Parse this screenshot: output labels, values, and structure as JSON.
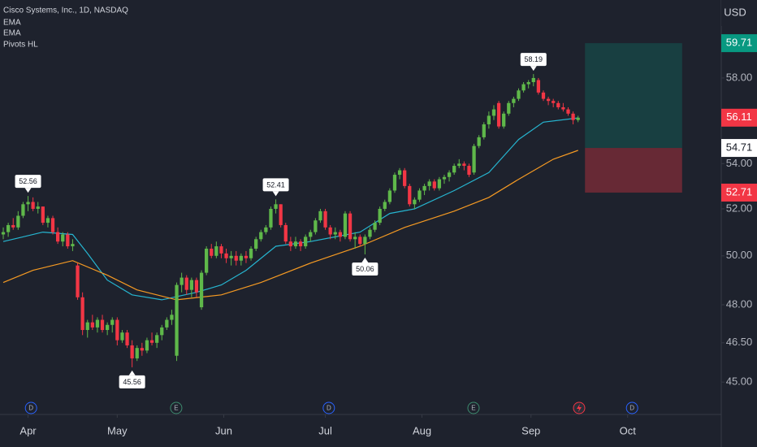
{
  "chart_data": {
    "type": "candlestick",
    "title": "Cisco Systems, Inc., 1D, NASDAQ",
    "currency": "USD",
    "log_scale": true,
    "up_color": "#5fb84a",
    "down_color": "#f23645",
    "ylim": [
      43.8,
      61.9
    ],
    "yticks": [
      {
        "value": 45,
        "label": "45.00"
      },
      {
        "value": 46.5,
        "label": "46.50"
      },
      {
        "value": 48,
        "label": "48.00"
      },
      {
        "value": 50,
        "label": "50.00"
      },
      {
        "value": 52,
        "label": "52.00"
      },
      {
        "value": 54,
        "label": "54.00"
      },
      {
        "value": 58,
        "label": "58.00"
      }
    ],
    "xlim": [
      -0.66,
      144.9
    ],
    "xticks": [
      {
        "value": 5,
        "label": "Apr"
      },
      {
        "value": 23,
        "label": "May"
      },
      {
        "value": 44.5,
        "label": "Jun"
      },
      {
        "value": 65,
        "label": "Jul"
      },
      {
        "value": 84.5,
        "label": "Aug"
      },
      {
        "value": 106.5,
        "label": "Sep"
      },
      {
        "value": 126,
        "label": "Oct"
      }
    ],
    "candles": [
      [
        50.9,
        51.2,
        50.7,
        51.0
      ],
      [
        51.0,
        51.4,
        50.8,
        51.3
      ],
      [
        51.3,
        51.6,
        51.1,
        51.2
      ],
      [
        51.2,
        51.9,
        51.1,
        51.7
      ],
      [
        51.7,
        52.3,
        51.6,
        52.2
      ],
      [
        52.2,
        52.56,
        51.9,
        52.3
      ],
      [
        52.3,
        52.5,
        51.9,
        52.0
      ],
      [
        52.0,
        52.3,
        51.8,
        52.1
      ],
      [
        52.1,
        52.1,
        51.3,
        51.4
      ],
      [
        51.4,
        51.7,
        51.2,
        51.6
      ],
      [
        51.6,
        51.7,
        50.9,
        51.0
      ],
      [
        51.0,
        51.2,
        50.5,
        50.6
      ],
      [
        50.6,
        51.0,
        50.4,
        50.9
      ],
      [
        50.9,
        51.0,
        50.3,
        50.4
      ],
      [
        50.4,
        50.7,
        50.2,
        50.5
      ],
      [
        49.6,
        49.7,
        48.2,
        48.3
      ],
      [
        48.3,
        48.5,
        46.8,
        47.0
      ],
      [
        47.0,
        47.4,
        46.7,
        47.3
      ],
      [
        47.3,
        47.6,
        47.0,
        47.1
      ],
      [
        47.1,
        47.5,
        46.9,
        47.4
      ],
      [
        47.4,
        47.6,
        46.9,
        47.0
      ],
      [
        47.0,
        47.3,
        46.8,
        47.2
      ],
      [
        47.2,
        47.5,
        46.9,
        47.4
      ],
      [
        47.4,
        47.5,
        46.4,
        46.6
      ],
      [
        46.6,
        47.0,
        46.5,
        46.9
      ],
      [
        46.9,
        47.0,
        46.3,
        46.4
      ],
      [
        46.4,
        46.6,
        45.56,
        45.9
      ],
      [
        45.9,
        46.4,
        45.8,
        46.3
      ],
      [
        46.3,
        46.5,
        46.0,
        46.2
      ],
      [
        46.2,
        46.7,
        46.1,
        46.6
      ],
      [
        46.6,
        46.9,
        46.4,
        46.5
      ],
      [
        46.5,
        46.9,
        46.3,
        46.8
      ],
      [
        46.8,
        47.2,
        46.6,
        47.1
      ],
      [
        47.1,
        47.5,
        47.0,
        47.4
      ],
      [
        47.4,
        47.8,
        47.2,
        47.6
      ],
      [
        46.0,
        48.9,
        45.8,
        48.8
      ],
      [
        48.8,
        49.3,
        48.5,
        49.1
      ],
      [
        49.1,
        49.2,
        48.4,
        48.6
      ],
      [
        48.6,
        49.1,
        48.3,
        49.0
      ],
      [
        49.0,
        49.1,
        48.3,
        48.5
      ],
      [
        47.9,
        49.4,
        47.8,
        49.3
      ],
      [
        49.3,
        50.4,
        49.2,
        50.3
      ],
      [
        50.3,
        50.5,
        49.9,
        50.0
      ],
      [
        50.0,
        50.6,
        49.9,
        50.4
      ],
      [
        50.4,
        50.5,
        49.9,
        50.1
      ],
      [
        50.1,
        50.3,
        49.7,
        49.9
      ],
      [
        49.9,
        50.2,
        49.6,
        50.0
      ],
      [
        50.0,
        50.2,
        49.6,
        49.8
      ],
      [
        49.8,
        50.1,
        49.6,
        50.0
      ],
      [
        50.0,
        50.2,
        49.7,
        49.9
      ],
      [
        49.9,
        50.4,
        49.8,
        50.3
      ],
      [
        50.3,
        50.8,
        50.2,
        50.7
      ],
      [
        50.7,
        51.1,
        50.6,
        51.0
      ],
      [
        51.0,
        51.3,
        50.9,
        51.2
      ],
      [
        51.2,
        52.1,
        51.1,
        52.0
      ],
      [
        52.0,
        52.41,
        51.8,
        52.2
      ],
      [
        52.2,
        52.2,
        51.2,
        51.3
      ],
      [
        51.3,
        51.4,
        50.5,
        50.6
      ],
      [
        50.6,
        50.8,
        50.2,
        50.4
      ],
      [
        50.4,
        50.8,
        50.3,
        50.6
      ],
      [
        50.6,
        50.7,
        50.2,
        50.4
      ],
      [
        50.4,
        50.9,
        50.3,
        50.8
      ],
      [
        50.8,
        51.1,
        50.6,
        51.0
      ],
      [
        51.0,
        51.6,
        50.9,
        51.5
      ],
      [
        51.5,
        52.0,
        51.4,
        51.9
      ],
      [
        51.9,
        52.0,
        51.1,
        51.2
      ],
      [
        51.2,
        51.3,
        50.7,
        50.9
      ],
      [
        50.9,
        51.2,
        50.7,
        51.0
      ],
      [
        51.0,
        51.1,
        50.6,
        50.8
      ],
      [
        50.8,
        51.9,
        50.7,
        51.8
      ],
      [
        51.8,
        51.9,
        50.6,
        50.7
      ],
      [
        50.7,
        51.0,
        50.3,
        50.8
      ],
      [
        50.8,
        50.9,
        50.4,
        50.5
      ],
      [
        50.5,
        50.9,
        50.06,
        50.8
      ],
      [
        50.8,
        51.2,
        50.7,
        51.1
      ],
      [
        51.1,
        51.5,
        51.0,
        51.4
      ],
      [
        51.4,
        52.1,
        51.3,
        52.0
      ],
      [
        52.0,
        52.4,
        51.9,
        52.3
      ],
      [
        52.3,
        52.9,
        52.2,
        52.8
      ],
      [
        52.8,
        53.6,
        52.7,
        53.5
      ],
      [
        53.5,
        53.8,
        53.3,
        53.7
      ],
      [
        53.7,
        53.8,
        52.9,
        53.0
      ],
      [
        53.0,
        53.1,
        52.1,
        52.2
      ],
      [
        52.2,
        52.5,
        52.0,
        52.4
      ],
      [
        52.4,
        52.9,
        52.3,
        52.8
      ],
      [
        52.8,
        53.1,
        52.6,
        53.0
      ],
      [
        53.0,
        53.3,
        52.8,
        53.2
      ],
      [
        53.2,
        53.3,
        52.8,
        52.9
      ],
      [
        52.9,
        53.4,
        52.8,
        53.3
      ],
      [
        53.3,
        53.5,
        53.1,
        53.4
      ],
      [
        53.4,
        53.7,
        53.2,
        53.6
      ],
      [
        53.6,
        54.0,
        53.5,
        53.9
      ],
      [
        53.9,
        54.2,
        53.8,
        54.0
      ],
      [
        54.0,
        54.1,
        53.7,
        53.9
      ],
      [
        53.9,
        54.0,
        53.4,
        53.5
      ],
      [
        53.6,
        54.9,
        53.5,
        54.8
      ],
      [
        54.8,
        55.3,
        54.7,
        55.2
      ],
      [
        55.2,
        55.9,
        55.1,
        55.8
      ],
      [
        55.8,
        56.4,
        55.6,
        56.2
      ],
      [
        56.2,
        56.7,
        56.0,
        56.5
      ],
      [
        56.8,
        56.9,
        55.6,
        55.7
      ],
      [
        55.7,
        56.4,
        55.6,
        56.3
      ],
      [
        56.3,
        56.9,
        56.2,
        56.8
      ],
      [
        56.8,
        57.1,
        56.6,
        57.0
      ],
      [
        57.0,
        57.5,
        56.9,
        57.4
      ],
      [
        57.4,
        57.8,
        57.3,
        57.7
      ],
      [
        57.7,
        57.9,
        57.5,
        57.8
      ],
      [
        57.8,
        58.19,
        57.6,
        58.0
      ],
      [
        57.9,
        58.0,
        57.2,
        57.3
      ],
      [
        57.3,
        57.4,
        56.9,
        57.0
      ],
      [
        57.0,
        57.1,
        56.7,
        56.9
      ],
      [
        56.9,
        57.0,
        56.6,
        56.8
      ],
      [
        56.8,
        56.9,
        56.5,
        56.6
      ],
      [
        56.6,
        56.8,
        56.4,
        56.5
      ],
      [
        56.5,
        56.6,
        56.2,
        56.3
      ],
      [
        56.3,
        56.4,
        55.8,
        56.0
      ],
      [
        56.0,
        56.2,
        55.9,
        56.11
      ]
    ],
    "series": [
      {
        "name": "EMA",
        "color": "#26b5d0",
        "x": [
          0,
          4,
          8,
          14,
          17,
          21,
          26,
          32,
          39,
          44,
          49,
          55,
          62,
          67,
          72,
          78,
          83,
          91,
          98,
          104,
          109,
          116
        ],
        "values": [
          50.6,
          50.8,
          51.0,
          50.9,
          50.1,
          49.0,
          48.4,
          48.2,
          48.5,
          48.8,
          49.4,
          50.4,
          50.6,
          50.8,
          51.0,
          51.8,
          52.0,
          52.8,
          53.6,
          55.1,
          55.9,
          56.1
        ]
      },
      {
        "name": "EMA",
        "color": "#f59a23",
        "x": [
          0,
          6,
          14,
          21,
          27,
          35,
          44,
          52,
          62,
          72,
          81,
          91,
          98,
          104,
          111,
          116
        ],
        "values": [
          48.9,
          49.4,
          49.8,
          49.2,
          48.6,
          48.2,
          48.4,
          48.9,
          49.7,
          50.4,
          51.2,
          51.9,
          52.5,
          53.3,
          54.2,
          54.6
        ]
      }
    ],
    "pivots_name": "Pivots HL",
    "pivots": [
      {
        "bar": 5,
        "value": 52.56,
        "position": "above"
      },
      {
        "bar": 26,
        "value": 45.56,
        "position": "below"
      },
      {
        "bar": 55,
        "value": 52.41,
        "position": "above"
      },
      {
        "bar": 73,
        "value": 50.06,
        "position": "below"
      },
      {
        "bar": 107,
        "value": 58.19,
        "position": "above"
      }
    ],
    "last_price": 56.11,
    "position_tool": {
      "x": [
        117.4,
        137
      ],
      "target": 59.71,
      "entry": 54.71,
      "stop": 52.71
    },
    "events": [
      {
        "x": 5.6,
        "label": "D"
      },
      {
        "x": 34.9,
        "label": "E"
      },
      {
        "x": 65.7,
        "label": "D"
      },
      {
        "x": 94.9,
        "label": "E"
      },
      {
        "x": 126.9,
        "label": "D"
      }
    ]
  }
}
